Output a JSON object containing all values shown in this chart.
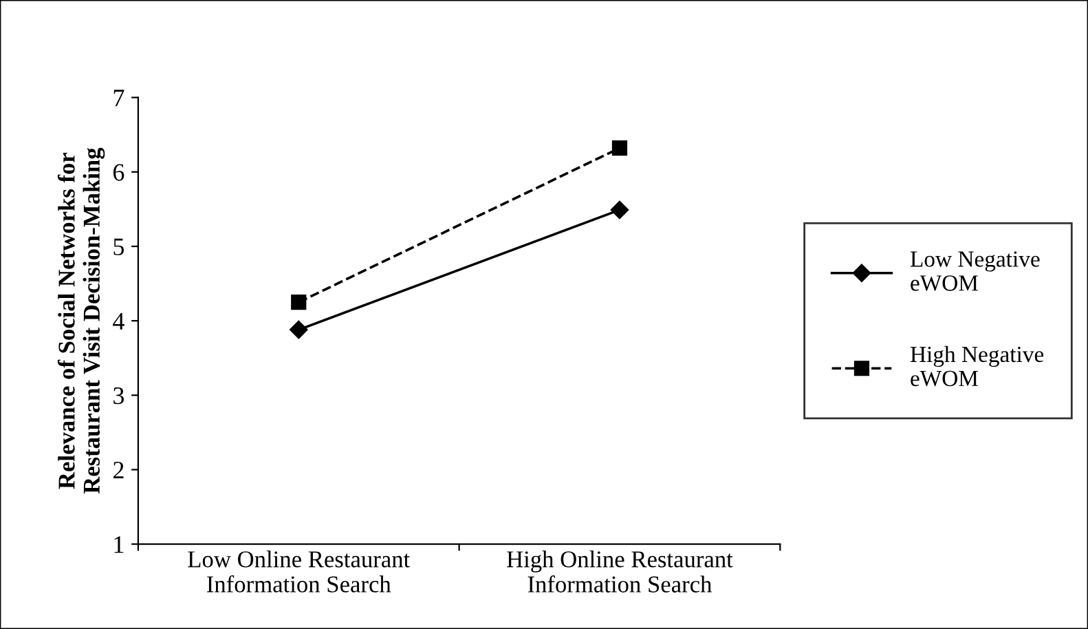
{
  "chart_data": {
    "type": "line",
    "ylabel": "Relevance of Social Networks for\nRestaurant Visit Decision-Making",
    "categories": [
      "Low Online Restaurant\nInformation Search",
      "High Online Restaurant\nInformation Search"
    ],
    "series": [
      {
        "name": "Low Negative\neWOM",
        "color": "#000000",
        "values": [
          3.88,
          5.49
        ],
        "marker": "diamond",
        "line_style": "solid"
      },
      {
        "name": "High Negative\neWOM",
        "color": "#000000",
        "values": [
          4.25,
          6.32
        ],
        "marker": "square",
        "line_style": "dashed"
      }
    ],
    "ylim": [
      1,
      7
    ],
    "yticks": [
      1,
      2,
      3,
      4,
      5,
      6,
      7
    ],
    "grid": false,
    "legend": "right"
  }
}
